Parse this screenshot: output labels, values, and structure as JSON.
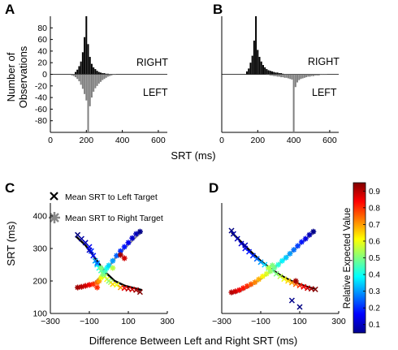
{
  "panels": {
    "a": "A",
    "b": "B",
    "c": "C",
    "d": "D"
  },
  "top_xlabel": "SRT (ms)",
  "top_ylabel_line1": "Number of",
  "top_ylabel_line2": "Observations",
  "bottom_xlabel": "Difference Between Left and Right SRT (ms)",
  "bottom_ylabel": "SRT (ms)",
  "label_right": "RIGHT",
  "label_left": "LEFT",
  "legend_x": "Mean SRT to Left Target",
  "legend_star": "Mean SRT to Right Target",
  "colorbar_label": "Relative Expected Value",
  "colors": {
    "right_bars": "#000000",
    "left_bars": "#808080",
    "fit_left": "#000000",
    "fit_right": "#909090"
  },
  "chart_data": [
    {
      "id": "A",
      "type": "bar",
      "xlim": [
        0,
        650
      ],
      "ylim": [
        -100,
        100
      ],
      "xticks": [
        0,
        200,
        400,
        600
      ],
      "yticks": [
        -80,
        -60,
        -40,
        -20,
        0,
        20,
        40,
        60,
        80
      ],
      "bin_width_ms": 10,
      "series": [
        {
          "name": "RIGHT",
          "x": [
            140,
            150,
            160,
            170,
            180,
            190,
            200,
            210,
            220,
            230,
            240,
            250,
            260,
            270,
            280,
            290,
            300,
            310,
            320
          ],
          "values": [
            4,
            8,
            14,
            22,
            38,
            64,
            100,
            52,
            30,
            18,
            12,
            9,
            6,
            4,
            3,
            2,
            2,
            1,
            1
          ]
        },
        {
          "name": "LEFT",
          "x": [
            120,
            130,
            140,
            150,
            160,
            170,
            180,
            190,
            200,
            210,
            220,
            230,
            240,
            250,
            260,
            270,
            280,
            290,
            300,
            310,
            320,
            330,
            340,
            350,
            360
          ],
          "values": [
            -2,
            -3,
            -5,
            -8,
            -12,
            -18,
            -25,
            -34,
            -45,
            -100,
            -55,
            -40,
            -30,
            -24,
            -20,
            -16,
            -13,
            -10,
            -8,
            -6,
            -4,
            -3,
            -2,
            -1,
            -1
          ]
        }
      ]
    },
    {
      "id": "B",
      "type": "bar",
      "xlim": [
        0,
        650
      ],
      "ylim": [
        -100,
        100
      ],
      "xticks": [
        0,
        200,
        400,
        600
      ],
      "bin_width_ms": 10,
      "series": [
        {
          "name": "RIGHT",
          "x": [
            140,
            150,
            160,
            170,
            180,
            190,
            200,
            210,
            220,
            230,
            240,
            250,
            260,
            270,
            280,
            290,
            300,
            310,
            320,
            330,
            340
          ],
          "values": [
            5,
            10,
            20,
            32,
            58,
            100,
            42,
            30,
            22,
            16,
            12,
            9,
            7,
            6,
            5,
            4,
            3,
            3,
            2,
            2,
            1
          ]
        },
        {
          "name": "LEFT",
          "x": [
            250,
            260,
            270,
            280,
            290,
            300,
            310,
            320,
            330,
            340,
            350,
            360,
            370,
            380,
            390,
            400,
            410,
            420,
            430,
            440,
            450,
            460,
            470,
            480,
            490,
            500,
            510,
            520,
            530,
            540,
            550,
            560,
            570,
            580
          ],
          "values": [
            -1,
            -1,
            -2,
            -2,
            -3,
            -3,
            -4,
            -4,
            -5,
            -5,
            -6,
            -6,
            -7,
            -8,
            -9,
            -100,
            -22,
            -14,
            -10,
            -8,
            -7,
            -6,
            -5,
            -4,
            -4,
            -3,
            -3,
            -2,
            -2,
            -2,
            -1,
            -1,
            -1,
            -1
          ]
        }
      ]
    },
    {
      "id": "C",
      "type": "scatter",
      "xlim": [
        -300,
        300
      ],
      "ylim": [
        100,
        440
      ],
      "xticks": [
        -300,
        -100,
        100,
        300
      ],
      "yticks": [
        100,
        200,
        300,
        400
      ],
      "series": [
        {
          "name": "Mean SRT to Left Target",
          "points": [
            [
              -160,
              342,
              0.05
            ],
            [
              -140,
              330,
              0.08
            ],
            [
              -120,
              318,
              0.1
            ],
            [
              -100,
              305,
              0.15
            ],
            [
              -90,
              292,
              0.2
            ],
            [
              -80,
              278,
              0.18
            ],
            [
              -70,
              262,
              0.3
            ],
            [
              -60,
              250,
              0.35
            ],
            [
              -50,
              240,
              0.4
            ],
            [
              -40,
              232,
              0.45
            ],
            [
              -30,
              222,
              0.5
            ],
            [
              -20,
              214,
              0.55
            ],
            [
              -10,
              205,
              0.6
            ],
            [
              0,
              200,
              0.5
            ],
            [
              10,
              196,
              0.55
            ],
            [
              20,
              190,
              0.65
            ],
            [
              40,
              188,
              0.6
            ],
            [
              60,
              180,
              0.7
            ],
            [
              80,
              178,
              0.85
            ],
            [
              100,
              176,
              0.9
            ],
            [
              120,
              174,
              0.88
            ],
            [
              140,
              172,
              0.92
            ],
            [
              160,
              166,
              0.95
            ],
            [
              -100,
              295,
              0.12
            ],
            [
              -60,
              255,
              0.25
            ]
          ]
        },
        {
          "name": "Mean SRT to Right Target",
          "points": [
            [
              -160,
              180,
              0.92
            ],
            [
              -140,
              182,
              0.9
            ],
            [
              -120,
              185,
              0.88
            ],
            [
              -100,
              188,
              0.85
            ],
            [
              -80,
              190,
              0.8
            ],
            [
              -60,
              195,
              0.75
            ],
            [
              -50,
              200,
              0.7
            ],
            [
              -40,
              210,
              0.6
            ],
            [
              -30,
              220,
              0.5
            ],
            [
              -20,
              230,
              0.45
            ],
            [
              -10,
              240,
              0.4
            ],
            [
              0,
              248,
              0.35
            ],
            [
              20,
              262,
              0.3
            ],
            [
              40,
              278,
              0.25
            ],
            [
              60,
              292,
              0.2
            ],
            [
              80,
              305,
              0.18
            ],
            [
              100,
              318,
              0.15
            ],
            [
              120,
              332,
              0.12
            ],
            [
              140,
              345,
              0.1
            ],
            [
              160,
              352,
              0.06
            ],
            [
              -40,
              240,
              0.5
            ],
            [
              20,
              240,
              0.55
            ],
            [
              -60,
              180,
              0.8
            ],
            [
              60,
              280,
              0.92
            ],
            [
              80,
              270,
              0.88
            ]
          ]
        }
      ],
      "fits": [
        {
          "name": "fit_left",
          "x": [
            -170,
            -120,
            -70,
            -20,
            30,
            80,
            130,
            170
          ],
          "y": [
            338,
            310,
            270,
            228,
            200,
            186,
            178,
            172
          ]
        },
        {
          "name": "fit_right",
          "x": [
            -170,
            -120,
            -70,
            -20,
            30,
            80,
            130,
            170
          ],
          "y": [
            178,
            183,
            196,
            228,
            268,
            300,
            330,
            352
          ]
        }
      ]
    },
    {
      "id": "D",
      "type": "scatter",
      "xlim": [
        -300,
        300
      ],
      "ylim": [
        100,
        440
      ],
      "xticks": [
        -300,
        -100,
        100,
        300
      ],
      "series": [
        {
          "name": "Mean SRT to Left Target",
          "points": [
            [
              -250,
              355,
              0.05
            ],
            [
              -240,
              345,
              0.08
            ],
            [
              -220,
              330,
              0.1
            ],
            [
              -200,
              315,
              0.12
            ],
            [
              -180,
              300,
              0.15
            ],
            [
              -160,
              290,
              0.18
            ],
            [
              -140,
              278,
              0.2
            ],
            [
              -120,
              268,
              0.25
            ],
            [
              -100,
              258,
              0.3
            ],
            [
              -80,
              250,
              0.35
            ],
            [
              -60,
              240,
              0.4
            ],
            [
              -40,
              232,
              0.45
            ],
            [
              -20,
              222,
              0.5
            ],
            [
              0,
              214,
              0.55
            ],
            [
              20,
              206,
              0.6
            ],
            [
              40,
              200,
              0.65
            ],
            [
              60,
              195,
              0.7
            ],
            [
              80,
              190,
              0.75
            ],
            [
              100,
              186,
              0.8
            ],
            [
              120,
              182,
              0.85
            ],
            [
              140,
              178,
              0.88
            ],
            [
              160,
              176,
              0.92
            ],
            [
              180,
              174,
              0.95
            ],
            [
              -180,
              310,
              0.1
            ],
            [
              100,
              120,
              0.05
            ],
            [
              60,
              140,
              0.06
            ]
          ]
        },
        {
          "name": "Mean SRT to Right Target",
          "points": [
            [
              -250,
              165,
              0.9
            ],
            [
              -230,
              168,
              0.88
            ],
            [
              -210,
              172,
              0.85
            ],
            [
              -190,
              178,
              0.82
            ],
            [
              -170,
              184,
              0.8
            ],
            [
              -150,
              190,
              0.76
            ],
            [
              -130,
              196,
              0.72
            ],
            [
              -110,
              205,
              0.68
            ],
            [
              -90,
              214,
              0.62
            ],
            [
              -70,
              222,
              0.58
            ],
            [
              -50,
              230,
              0.52
            ],
            [
              -30,
              240,
              0.48
            ],
            [
              -10,
              250,
              0.42
            ],
            [
              10,
              262,
              0.38
            ],
            [
              30,
              272,
              0.34
            ],
            [
              50,
              284,
              0.3
            ],
            [
              70,
              296,
              0.26
            ],
            [
              90,
              308,
              0.22
            ],
            [
              110,
              320,
              0.18
            ],
            [
              130,
              330,
              0.14
            ],
            [
              150,
              342,
              0.1
            ],
            [
              170,
              352,
              0.06
            ],
            [
              -40,
              248,
              0.5
            ],
            [
              -60,
              240,
              0.55
            ],
            [
              80,
              200,
              0.92
            ]
          ]
        }
      ],
      "fits": [
        {
          "name": "fit_left",
          "x": [
            -250,
            -200,
            -150,
            -100,
            -50,
            0,
            50,
            100,
            150,
            180
          ],
          "y": [
            350,
            320,
            290,
            262,
            238,
            218,
            202,
            190,
            180,
            176
          ]
        },
        {
          "name": "fit_right",
          "x": [
            -250,
            -200,
            -150,
            -100,
            -50,
            0,
            50,
            100,
            150,
            180
          ],
          "y": [
            160,
            170,
            186,
            206,
            230,
            256,
            284,
            312,
            338,
            352
          ]
        }
      ]
    }
  ],
  "colorbar": {
    "min": 0.05,
    "max": 0.95,
    "ticks": [
      "0.9",
      "0.8",
      "0.7",
      "0.6",
      "0.5",
      "0.4",
      "0.3",
      "0.2",
      "0.1"
    ],
    "tick_values": [
      0.9,
      0.8,
      0.7,
      0.6,
      0.5,
      0.4,
      0.3,
      0.2,
      0.1
    ]
  }
}
